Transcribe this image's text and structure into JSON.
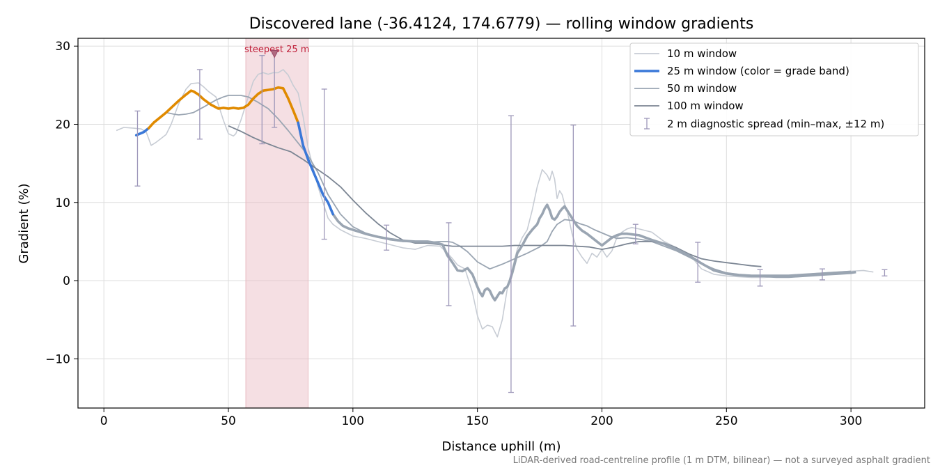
{
  "footnote": "LiDAR-derived road-centreline profile (1 m DTM, bilinear) — not a surveyed asphalt gradient",
  "chart_data": {
    "type": "line",
    "title": "Discovered lane (-36.4124, 174.6779) — rolling window gradients",
    "xlabel": "Distance uphill (m)",
    "ylabel": "Gradient (%)",
    "xlim": [
      -10.4,
      329.6
    ],
    "ylim": [
      -16.3,
      31.0
    ],
    "xticks": [
      0,
      50,
      100,
      150,
      200,
      250,
      300
    ],
    "xtick_labels": [
      "0",
      "50",
      "100",
      "150",
      "200",
      "250",
      "300"
    ],
    "yticks": [
      -10,
      0,
      10,
      20,
      30
    ],
    "ytick_labels": [
      "−10",
      "0",
      "10",
      "20",
      "30"
    ],
    "grid": true,
    "legend_position": "top-right",
    "colors": {
      "w10": "#c7ccd4",
      "w50": "#9aa5b2",
      "w100": "#7b8593",
      "band_normal": "#3a78d8",
      "band_steep": "#e08a00",
      "error_bar": "#9d97b9",
      "highlight": "#e8b9c0",
      "annotation": "#c0203a"
    },
    "highlight_region": {
      "x_start": 57,
      "x_end": 82,
      "label": "steepest 25 m"
    },
    "steepest_marker": {
      "x": 68.5,
      "y": 29.0
    },
    "series": [
      {
        "name": "10 m window",
        "x": [
          5,
          8,
          12,
          15,
          17,
          19,
          21,
          23,
          25,
          27,
          30,
          33,
          35,
          38,
          40,
          42,
          45,
          48,
          50,
          52,
          53,
          55,
          57,
          60,
          62,
          64,
          66,
          68,
          70,
          72,
          74,
          76,
          78,
          80,
          82,
          84,
          86,
          88,
          90,
          92,
          95,
          100,
          105,
          110,
          115,
          120,
          125,
          130,
          135,
          138,
          140,
          142,
          145,
          148,
          150,
          152,
          154,
          156,
          158,
          160,
          162,
          164,
          166,
          168,
          170,
          172,
          174,
          176,
          178,
          179,
          180,
          181,
          182,
          183,
          184,
          185,
          186,
          188,
          190,
          192,
          194,
          196,
          198,
          200,
          202,
          204,
          206,
          208,
          210,
          212,
          215,
          220,
          225,
          230,
          235,
          240,
          245,
          250,
          255,
          260,
          265,
          270,
          275,
          280,
          285,
          290,
          295,
          300,
          305,
          309
        ],
        "y": [
          19.2,
          19.6,
          19.5,
          19.4,
          19.0,
          17.3,
          17.7,
          18.2,
          18.7,
          20.0,
          22.6,
          24.5,
          25.2,
          25.3,
          24.8,
          24.2,
          23.5,
          20.5,
          18.8,
          18.5,
          18.8,
          20.5,
          22.5,
          25.5,
          26.4,
          26.6,
          26.4,
          26.6,
          26.6,
          27.0,
          26.3,
          25.0,
          24.0,
          21.0,
          17.0,
          14.5,
          12.0,
          10.0,
          8.0,
          7.2,
          6.5,
          5.7,
          5.4,
          5.0,
          4.6,
          4.2,
          4.0,
          4.5,
          4.4,
          3.5,
          2.8,
          2.0,
          1.5,
          -1.5,
          -4.5,
          -6.2,
          -5.7,
          -5.9,
          -7.2,
          -5.0,
          -1.0,
          1.5,
          4.0,
          5.5,
          6.5,
          9.0,
          12.0,
          14.2,
          13.5,
          12.8,
          14.0,
          13.0,
          10.5,
          11.5,
          11.0,
          9.8,
          9.0,
          6.0,
          4.0,
          3.0,
          2.2,
          3.5,
          3.0,
          4.0,
          3.0,
          3.8,
          5.5,
          6.2,
          6.6,
          6.8,
          6.6,
          6.2,
          5.0,
          4.2,
          3.4,
          1.5,
          0.8,
          0.6,
          0.5,
          0.4,
          0.4,
          0.5,
          0.6,
          0.7,
          0.9,
          1.0,
          1.1,
          1.2,
          1.3,
          1.1
        ]
      },
      {
        "name": "25 m window (color = grade band)",
        "x": [
          13,
          16,
          18,
          20,
          25,
          30,
          33,
          35,
          36,
          38,
          40,
          43,
          46,
          48,
          50,
          52,
          54,
          56,
          58,
          60,
          62,
          64,
          66,
          68,
          70,
          72,
          74,
          76,
          78,
          80,
          82,
          84,
          86,
          88,
          90,
          92,
          94,
          96,
          98,
          100,
          105,
          110,
          115,
          120,
          125,
          130,
          134,
          136,
          138,
          140,
          142,
          144,
          146,
          148,
          150,
          151,
          152,
          153,
          154,
          155,
          156,
          157,
          158,
          159,
          160,
          161,
          162,
          163,
          164,
          165,
          166,
          168,
          170,
          172,
          174,
          175,
          176,
          177,
          178,
          179,
          180,
          181,
          182,
          183,
          184,
          185,
          186,
          188,
          190,
          192,
          194,
          196,
          198,
          200,
          202,
          204,
          206,
          208,
          210,
          215,
          220,
          225,
          230,
          235,
          240,
          245,
          250,
          255,
          260,
          265,
          270,
          275,
          280,
          285,
          290,
          295,
          300,
          302
        ],
        "y": [
          18.6,
          19.0,
          19.5,
          20.2,
          21.5,
          23.0,
          23.8,
          24.3,
          24.2,
          23.8,
          23.2,
          22.5,
          22.0,
          22.1,
          22.0,
          22.1,
          22.0,
          22.1,
          22.5,
          23.3,
          23.9,
          24.3,
          24.4,
          24.5,
          24.7,
          24.6,
          23.3,
          21.8,
          20.2,
          17.3,
          15.5,
          14.0,
          12.5,
          11.0,
          10.0,
          8.5,
          7.6,
          7.0,
          6.7,
          6.5,
          6.0,
          5.6,
          5.3,
          5.1,
          5.0,
          5.0,
          4.8,
          4.6,
          3.2,
          2.3,
          1.3,
          1.2,
          1.6,
          0.8,
          -0.8,
          -1.5,
          -2.0,
          -1.2,
          -1.0,
          -1.3,
          -2.0,
          -2.5,
          -2.0,
          -1.5,
          -1.6,
          -1.0,
          -0.8,
          0.0,
          1.0,
          2.2,
          3.5,
          4.5,
          5.7,
          6.5,
          7.2,
          8.0,
          8.5,
          9.2,
          9.7,
          9.0,
          8.0,
          7.8,
          8.2,
          8.8,
          9.2,
          9.5,
          9.0,
          8.0,
          7.0,
          6.4,
          6.0,
          5.5,
          5.0,
          4.5,
          5.0,
          5.5,
          5.8,
          6.0,
          6.0,
          5.8,
          5.2,
          4.7,
          4.0,
          3.2,
          2.2,
          1.3,
          0.9,
          0.7,
          0.6,
          0.6,
          0.5,
          0.5,
          0.6,
          0.7,
          0.8,
          0.9,
          1.0,
          1.1
        ]
      },
      {
        "name": "50 m window",
        "x": [
          25,
          28,
          30,
          33,
          36,
          40,
          45,
          48,
          50,
          55,
          58,
          62,
          66,
          70,
          74,
          78,
          82,
          86,
          90,
          95,
          100,
          105,
          110,
          115,
          120,
          125,
          130,
          135,
          138,
          140,
          143,
          146,
          150,
          155,
          160,
          165,
          170,
          175,
          178,
          180,
          182,
          185,
          188,
          191,
          194,
          197,
          200,
          203,
          206,
          210,
          215,
          220,
          225,
          230,
          235,
          240,
          245,
          250,
          255,
          260,
          265,
          270,
          275,
          280,
          285,
          290,
          295,
          300
        ],
        "y": [
          21.5,
          21.3,
          21.2,
          21.3,
          21.5,
          22.2,
          23.1,
          23.5,
          23.7,
          23.7,
          23.5,
          22.8,
          22.0,
          20.7,
          19.2,
          17.6,
          16.0,
          13.8,
          11.0,
          8.5,
          6.9,
          6.1,
          5.6,
          5.2,
          5.0,
          5.0,
          4.9,
          5.0,
          5.0,
          4.9,
          4.4,
          3.7,
          2.4,
          1.5,
          2.1,
          2.8,
          3.5,
          4.3,
          5.0,
          6.3,
          7.2,
          7.8,
          7.7,
          7.3,
          7.0,
          6.5,
          6.1,
          5.7,
          5.4,
          5.5,
          5.3,
          5.0,
          4.4,
          3.8,
          3.0,
          2.2,
          1.5,
          1.0,
          0.8,
          0.7,
          0.7,
          0.7,
          0.7,
          0.8,
          0.9,
          1.0,
          1.1,
          1.2
        ]
      },
      {
        "name": "100 m window",
        "x": [
          50,
          55,
          60,
          65,
          70,
          75,
          80,
          85,
          90,
          95,
          100,
          105,
          110,
          115,
          120,
          125,
          130,
          135,
          140,
          145,
          150,
          155,
          160,
          165,
          170,
          175,
          180,
          185,
          190,
          195,
          200,
          205,
          210,
          215,
          220,
          225,
          230,
          235,
          240,
          245,
          250,
          255,
          260,
          264
        ],
        "y": [
          19.8,
          19.1,
          18.3,
          17.6,
          17.0,
          16.5,
          15.5,
          14.4,
          13.3,
          12.0,
          10.3,
          8.7,
          7.3,
          6.1,
          5.2,
          4.8,
          4.8,
          4.6,
          4.4,
          4.4,
          4.4,
          4.4,
          4.4,
          4.5,
          4.5,
          4.5,
          4.5,
          4.5,
          4.4,
          4.3,
          4.0,
          4.3,
          4.7,
          5.0,
          5.0,
          4.8,
          4.2,
          3.4,
          2.8,
          2.5,
          2.3,
          2.1,
          1.9,
          1.8
        ]
      }
    ],
    "band_segments": [
      {
        "band": "normal",
        "x_start": 13,
        "x_end": 18
      },
      {
        "band": "steep",
        "x_start": 18,
        "x_end": 78
      },
      {
        "band": "normal",
        "x_start": 78,
        "x_end": 92
      }
    ],
    "error_bars": {
      "name": "2 m diagnostic spread (min–max, ±12 m)",
      "points": [
        {
          "x": 13.5,
          "min": 12.1,
          "max": 21.7
        },
        {
          "x": 38.5,
          "min": 18.1,
          "max": 27.0
        },
        {
          "x": 63.5,
          "min": 17.5,
          "max": 28.8
        },
        {
          "x": 68.5,
          "min": 19.6,
          "max": 29.0
        },
        {
          "x": 88.5,
          "min": 5.3,
          "max": 24.5
        },
        {
          "x": 113.5,
          "min": 3.9,
          "max": 7.1
        },
        {
          "x": 138.5,
          "min": -3.2,
          "max": 7.4
        },
        {
          "x": 163.5,
          "min": -14.3,
          "max": 21.1
        },
        {
          "x": 188.5,
          "min": -5.8,
          "max": 19.9
        },
        {
          "x": 213.5,
          "min": 4.7,
          "max": 7.2
        },
        {
          "x": 238.5,
          "min": -0.2,
          "max": 4.9
        },
        {
          "x": 263.5,
          "min": -0.7,
          "max": 1.4
        },
        {
          "x": 288.5,
          "min": 0.1,
          "max": 1.5
        },
        {
          "x": 313.5,
          "min": 0.6,
          "max": 1.4
        }
      ]
    }
  }
}
